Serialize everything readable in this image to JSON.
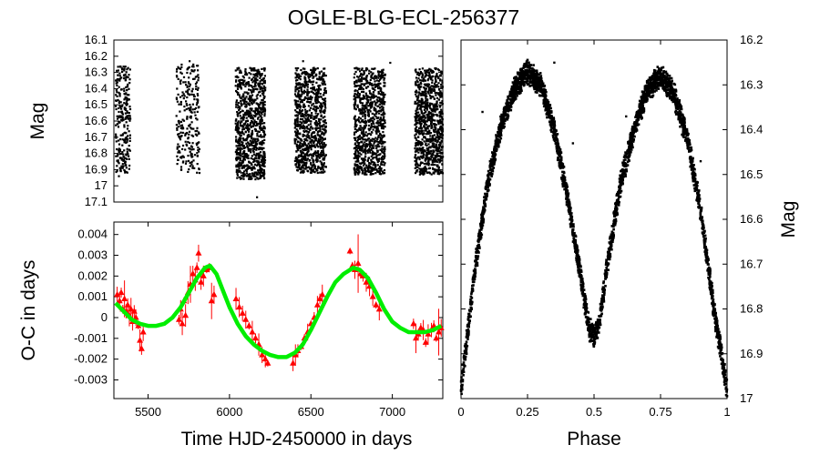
{
  "title": "OGLE-BLG-ECL-256377",
  "chart_data": [
    {
      "id": "light_curve",
      "type": "scatter",
      "ylabel": "Mag",
      "xlim": [
        5300,
        7300
      ],
      "ylim": [
        16.1,
        17.1
      ],
      "y_inverted": true,
      "y_ticks": [
        "16.1",
        "16.2",
        "16.3",
        "16.4",
        "16.5",
        "16.6",
        "16.7",
        "16.8",
        "16.9",
        "17",
        "17.1"
      ],
      "seasons": [
        {
          "x_start": 5310,
          "x_end": 5400,
          "mag_min": 16.26,
          "mag_max": 16.92
        },
        {
          "x_start": 5680,
          "x_end": 5820,
          "mag_min": 16.25,
          "mag_max": 16.92
        },
        {
          "x_start": 6040,
          "x_end": 6220,
          "mag_min": 16.27,
          "mag_max": 16.96
        },
        {
          "x_start": 6400,
          "x_end": 6590,
          "mag_min": 16.27,
          "mag_max": 16.92
        },
        {
          "x_start": 6760,
          "x_end": 6950,
          "mag_min": 16.27,
          "mag_max": 16.93
        },
        {
          "x_start": 7130,
          "x_end": 7300,
          "mag_min": 16.27,
          "mag_max": 16.93
        }
      ],
      "color": "#000000"
    },
    {
      "id": "o_minus_c",
      "type": "scatter",
      "xlabel": "Time HJD-2450000 in days",
      "ylabel": "O-C in days",
      "xlim": [
        5290,
        7310
      ],
      "ylim": [
        -0.0039,
        0.0046
      ],
      "x_ticks": [
        "5500",
        "6000",
        "6500",
        "7000"
      ],
      "y_ticks": [
        "0.004",
        "0.003",
        "0.002",
        "0.001",
        "0",
        "-0.001",
        "-0.002",
        "-0.003"
      ],
      "series": [
        {
          "marker": "triangle",
          "color": "#ff0000",
          "points": [
            [
              5310,
              0.0011
            ],
            [
              5325,
              0.0008
            ],
            [
              5335,
              0.0012
            ],
            [
              5345,
              0.0004
            ],
            [
              5355,
              0.0009
            ],
            [
              5365,
              0.0003
            ],
            [
              5375,
              0.0006
            ],
            [
              5385,
              0.0001
            ],
            [
              5395,
              0.0004
            ],
            [
              5405,
              -0.0002
            ],
            [
              5415,
              0.0003
            ],
            [
              5425,
              0.0
            ],
            [
              5440,
              -0.0004
            ],
            [
              5450,
              -0.0011
            ],
            [
              5460,
              -0.0015
            ],
            [
              5470,
              -0.0007
            ],
            [
              5690,
              -0.0001
            ],
            [
              5700,
              0.0004
            ],
            [
              5710,
              -0.0003
            ],
            [
              5720,
              0.0008
            ],
            [
              5730,
              0.0001
            ],
            [
              5745,
              0.0012
            ],
            [
              5760,
              0.0016
            ],
            [
              5775,
              0.0021
            ],
            [
              5790,
              0.0018
            ],
            [
              5800,
              0.0024
            ],
            [
              5810,
              0.0031
            ],
            [
              5825,
              0.0017
            ],
            [
              5840,
              0.002
            ],
            [
              5860,
              0.0023
            ],
            [
              5875,
              0.0024
            ],
            [
              5890,
              0.0008
            ],
            [
              5905,
              0.0011
            ],
            [
              6040,
              0.0009
            ],
            [
              6060,
              0.0005
            ],
            [
              6080,
              0.0002
            ],
            [
              6100,
              -0.0001
            ],
            [
              6120,
              -0.0004
            ],
            [
              6140,
              -0.0007
            ],
            [
              6160,
              -0.001
            ],
            [
              6180,
              -0.0013
            ],
            [
              6200,
              -0.0018
            ],
            [
              6220,
              -0.002
            ],
            [
              6235,
              -0.0022
            ],
            [
              6390,
              -0.0022
            ],
            [
              6405,
              -0.0018
            ],
            [
              6420,
              -0.0016
            ],
            [
              6440,
              -0.0014
            ],
            [
              6460,
              -0.001
            ],
            [
              6480,
              -0.0007
            ],
            [
              6500,
              -0.0003
            ],
            [
              6520,
              0.0
            ],
            [
              6540,
              0.0006
            ],
            [
              6555,
              0.0009
            ],
            [
              6570,
              0.0011
            ],
            [
              6740,
              0.0032
            ],
            [
              6755,
              0.0025
            ],
            [
              6770,
              0.0023
            ],
            [
              6790,
              0.0026
            ],
            [
              6805,
              0.0021
            ],
            [
              6820,
              0.002
            ],
            [
              6840,
              0.0017
            ],
            [
              6860,
              0.0015
            ],
            [
              6880,
              0.001
            ],
            [
              6900,
              0.0006
            ],
            [
              6920,
              0.0004
            ],
            [
              7130,
              -0.0003
            ],
            [
              7145,
              -0.001
            ],
            [
              7160,
              -0.0008
            ],
            [
              7175,
              -0.0005
            ],
            [
              7190,
              -0.0006
            ],
            [
              7205,
              -0.0012
            ],
            [
              7220,
              -0.0008
            ],
            [
              7240,
              -0.0006
            ],
            [
              7255,
              -0.0004
            ],
            [
              7270,
              -0.001
            ],
            [
              7285,
              -0.0007
            ],
            [
              7300,
              -0.0005
            ]
          ]
        },
        {
          "marker": "line",
          "color": "#00ee00",
          "points": [
            [
              5300,
              0.0007
            ],
            [
              5350,
              0.0003
            ],
            [
              5400,
              -0.0001
            ],
            [
              5450,
              -0.0003
            ],
            [
              5500,
              -0.0004
            ],
            [
              5550,
              -0.0004
            ],
            [
              5600,
              -0.0003
            ],
            [
              5650,
              0.0
            ],
            [
              5700,
              0.0005
            ],
            [
              5750,
              0.0012
            ],
            [
              5800,
              0.0019
            ],
            [
              5850,
              0.0024
            ],
            [
              5880,
              0.0025
            ],
            [
              5920,
              0.0021
            ],
            [
              5960,
              0.0013
            ],
            [
              6000,
              0.0005
            ],
            [
              6050,
              -0.0003
            ],
            [
              6100,
              -0.0009
            ],
            [
              6150,
              -0.0013
            ],
            [
              6200,
              -0.0016
            ],
            [
              6250,
              -0.0018
            ],
            [
              6300,
              -0.0019
            ],
            [
              6350,
              -0.0019
            ],
            [
              6400,
              -0.0017
            ],
            [
              6450,
              -0.0013
            ],
            [
              6500,
              -0.0006
            ],
            [
              6550,
              0.0002
            ],
            [
              6600,
              0.001
            ],
            [
              6650,
              0.0017
            ],
            [
              6700,
              0.0021
            ],
            [
              6760,
              0.0024
            ],
            [
              6800,
              0.0023
            ],
            [
              6850,
              0.0019
            ],
            [
              6900,
              0.0012
            ],
            [
              6950,
              0.0004
            ],
            [
              7000,
              -0.0002
            ],
            [
              7050,
              -0.0005
            ],
            [
              7100,
              -0.0007
            ],
            [
              7150,
              -0.0007
            ],
            [
              7200,
              -0.0007
            ],
            [
              7250,
              -0.0006
            ],
            [
              7300,
              -0.0004
            ]
          ]
        }
      ]
    },
    {
      "id": "phased",
      "type": "scatter",
      "xlabel": "Phase",
      "ylabel": "Mag",
      "xlim": [
        0,
        1
      ],
      "ylim": [
        16.2,
        17.0
      ],
      "y_inverted": true,
      "x_ticks": [
        "0",
        "0.25",
        "0.5",
        "0.75",
        "1"
      ],
      "y_ticks": [
        "16.2",
        "16.3",
        "16.4",
        "16.5",
        "16.6",
        "16.7",
        "16.8",
        "16.9",
        "17"
      ],
      "curve": [
        [
          0.0,
          16.98
        ],
        [
          0.05,
          16.72
        ],
        [
          0.1,
          16.52
        ],
        [
          0.15,
          16.39
        ],
        [
          0.2,
          16.31
        ],
        [
          0.25,
          16.27
        ],
        [
          0.3,
          16.3
        ],
        [
          0.35,
          16.4
        ],
        [
          0.4,
          16.55
        ],
        [
          0.45,
          16.73
        ],
        [
          0.48,
          16.84
        ],
        [
          0.5,
          16.86
        ],
        [
          0.52,
          16.83
        ],
        [
          0.55,
          16.7
        ],
        [
          0.6,
          16.52
        ],
        [
          0.65,
          16.4
        ],
        [
          0.7,
          16.31
        ],
        [
          0.75,
          16.28
        ],
        [
          0.8,
          16.32
        ],
        [
          0.85,
          16.42
        ],
        [
          0.9,
          16.58
        ],
        [
          0.95,
          16.8
        ],
        [
          1.0,
          16.98
        ]
      ],
      "color": "#000000"
    }
  ]
}
